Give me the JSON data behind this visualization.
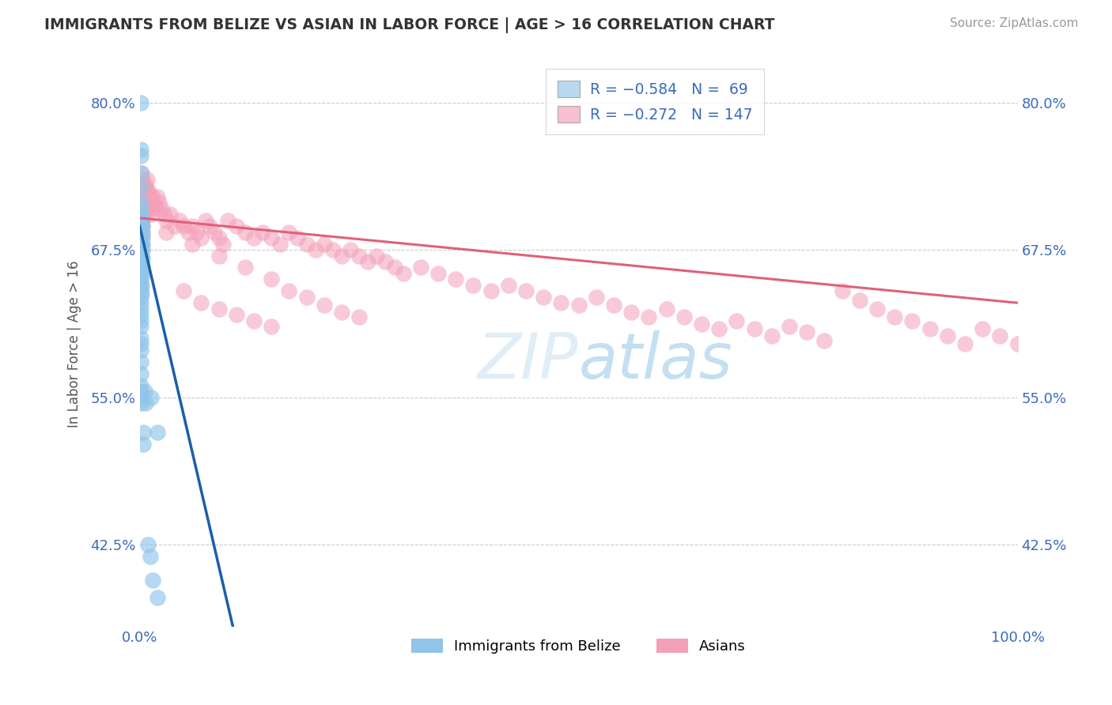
{
  "title": "IMMIGRANTS FROM BELIZE VS ASIAN IN LABOR FORCE | AGE > 16 CORRELATION CHART",
  "source_text": "Source: ZipAtlas.com",
  "ylabel": "In Labor Force | Age > 16",
  "xlim": [
    0.0,
    1.0
  ],
  "ylim": [
    0.355,
    0.835
  ],
  "yticks": [
    0.425,
    0.55,
    0.675,
    0.8
  ],
  "ytick_labels": [
    "42.5%",
    "55.0%",
    "67.5%",
    "80.0%"
  ],
  "xticks": [
    0.0,
    1.0
  ],
  "xtick_labels": [
    "0.0%",
    "100.0%"
  ],
  "belize_color": "#90c4e8",
  "asian_color": "#f4a0b8",
  "belize_trend_color": "#1a5fa8",
  "asian_trend_color": "#e0607a",
  "legend_belize_color": "#b8d8f0",
  "legend_asian_color": "#f8c0d0",
  "watermark_color": "#c8dff0",
  "belize_trend_slope": -3.2,
  "belize_trend_intercept": 0.695,
  "asian_trend_slope": -0.072,
  "asian_trend_intercept": 0.702,
  "belize_points": [
    [
      0.001,
      0.8
    ],
    [
      0.001,
      0.76
    ],
    [
      0.001,
      0.755
    ],
    [
      0.001,
      0.74
    ],
    [
      0.001,
      0.728
    ],
    [
      0.001,
      0.715
    ],
    [
      0.001,
      0.71
    ],
    [
      0.001,
      0.705
    ],
    [
      0.001,
      0.7
    ],
    [
      0.001,
      0.698
    ],
    [
      0.001,
      0.695
    ],
    [
      0.001,
      0.692
    ],
    [
      0.001,
      0.69
    ],
    [
      0.001,
      0.688
    ],
    [
      0.001,
      0.685
    ],
    [
      0.001,
      0.68
    ],
    [
      0.001,
      0.678
    ],
    [
      0.001,
      0.675
    ],
    [
      0.001,
      0.672
    ],
    [
      0.001,
      0.67
    ],
    [
      0.001,
      0.665
    ],
    [
      0.001,
      0.66
    ],
    [
      0.001,
      0.655
    ],
    [
      0.001,
      0.65
    ],
    [
      0.001,
      0.645
    ],
    [
      0.001,
      0.64
    ],
    [
      0.001,
      0.635
    ],
    [
      0.001,
      0.63
    ],
    [
      0.001,
      0.625
    ],
    [
      0.001,
      0.62
    ],
    [
      0.001,
      0.615
    ],
    [
      0.001,
      0.61
    ],
    [
      0.001,
      0.6
    ],
    [
      0.001,
      0.595
    ],
    [
      0.001,
      0.59
    ],
    [
      0.001,
      0.58
    ],
    [
      0.001,
      0.57
    ],
    [
      0.001,
      0.56
    ],
    [
      0.001,
      0.555
    ],
    [
      0.001,
      0.55
    ],
    [
      0.001,
      0.545
    ],
    [
      0.002,
      0.7
    ],
    [
      0.002,
      0.695
    ],
    [
      0.002,
      0.69
    ],
    [
      0.002,
      0.685
    ],
    [
      0.002,
      0.68
    ],
    [
      0.002,
      0.675
    ],
    [
      0.002,
      0.67
    ],
    [
      0.002,
      0.665
    ],
    [
      0.002,
      0.658
    ],
    [
      0.002,
      0.652
    ],
    [
      0.002,
      0.645
    ],
    [
      0.002,
      0.638
    ],
    [
      0.003,
      0.695
    ],
    [
      0.003,
      0.688
    ],
    [
      0.003,
      0.68
    ],
    [
      0.003,
      0.675
    ],
    [
      0.003,
      0.668
    ],
    [
      0.003,
      0.66
    ],
    [
      0.004,
      0.52
    ],
    [
      0.004,
      0.51
    ],
    [
      0.006,
      0.555
    ],
    [
      0.007,
      0.545
    ],
    [
      0.009,
      0.425
    ],
    [
      0.012,
      0.415
    ],
    [
      0.015,
      0.395
    ],
    [
      0.02,
      0.38
    ],
    [
      0.013,
      0.55
    ],
    [
      0.02,
      0.52
    ]
  ],
  "asian_points": [
    [
      0.001,
      0.73
    ],
    [
      0.001,
      0.72
    ],
    [
      0.001,
      0.715
    ],
    [
      0.001,
      0.71
    ],
    [
      0.001,
      0.705
    ],
    [
      0.001,
      0.7
    ],
    [
      0.001,
      0.695
    ],
    [
      0.001,
      0.69
    ],
    [
      0.001,
      0.685
    ],
    [
      0.001,
      0.68
    ],
    [
      0.002,
      0.74
    ],
    [
      0.002,
      0.73
    ],
    [
      0.002,
      0.72
    ],
    [
      0.002,
      0.715
    ],
    [
      0.002,
      0.71
    ],
    [
      0.002,
      0.705
    ],
    [
      0.002,
      0.7
    ],
    [
      0.002,
      0.695
    ],
    [
      0.002,
      0.69
    ],
    [
      0.002,
      0.685
    ],
    [
      0.002,
      0.68
    ],
    [
      0.003,
      0.735
    ],
    [
      0.003,
      0.728
    ],
    [
      0.003,
      0.72
    ],
    [
      0.003,
      0.715
    ],
    [
      0.003,
      0.71
    ],
    [
      0.003,
      0.7
    ],
    [
      0.003,
      0.695
    ],
    [
      0.003,
      0.69
    ],
    [
      0.003,
      0.685
    ],
    [
      0.004,
      0.73
    ],
    [
      0.004,
      0.722
    ],
    [
      0.004,
      0.715
    ],
    [
      0.004,
      0.708
    ],
    [
      0.005,
      0.725
    ],
    [
      0.005,
      0.718
    ],
    [
      0.005,
      0.71
    ],
    [
      0.005,
      0.703
    ],
    [
      0.006,
      0.728
    ],
    [
      0.006,
      0.72
    ],
    [
      0.006,
      0.712
    ],
    [
      0.007,
      0.73
    ],
    [
      0.007,
      0.722
    ],
    [
      0.007,
      0.714
    ],
    [
      0.008,
      0.735
    ],
    [
      0.008,
      0.725
    ],
    [
      0.009,
      0.72
    ],
    [
      0.009,
      0.71
    ],
    [
      0.01,
      0.725
    ],
    [
      0.01,
      0.715
    ],
    [
      0.011,
      0.72
    ],
    [
      0.012,
      0.715
    ],
    [
      0.013,
      0.71
    ],
    [
      0.014,
      0.705
    ],
    [
      0.015,
      0.72
    ],
    [
      0.016,
      0.715
    ],
    [
      0.018,
      0.71
    ],
    [
      0.02,
      0.72
    ],
    [
      0.022,
      0.715
    ],
    [
      0.025,
      0.71
    ],
    [
      0.028,
      0.705
    ],
    [
      0.03,
      0.7
    ],
    [
      0.035,
      0.705
    ],
    [
      0.04,
      0.695
    ],
    [
      0.045,
      0.7
    ],
    [
      0.05,
      0.695
    ],
    [
      0.055,
      0.69
    ],
    [
      0.06,
      0.695
    ],
    [
      0.065,
      0.69
    ],
    [
      0.07,
      0.685
    ],
    [
      0.075,
      0.7
    ],
    [
      0.08,
      0.695
    ],
    [
      0.085,
      0.69
    ],
    [
      0.09,
      0.685
    ],
    [
      0.095,
      0.68
    ],
    [
      0.1,
      0.7
    ],
    [
      0.11,
      0.695
    ],
    [
      0.12,
      0.69
    ],
    [
      0.13,
      0.685
    ],
    [
      0.14,
      0.69
    ],
    [
      0.15,
      0.685
    ],
    [
      0.16,
      0.68
    ],
    [
      0.17,
      0.69
    ],
    [
      0.18,
      0.685
    ],
    [
      0.19,
      0.68
    ],
    [
      0.2,
      0.675
    ],
    [
      0.21,
      0.68
    ],
    [
      0.22,
      0.675
    ],
    [
      0.23,
      0.67
    ],
    [
      0.24,
      0.675
    ],
    [
      0.25,
      0.67
    ],
    [
      0.26,
      0.665
    ],
    [
      0.27,
      0.67
    ],
    [
      0.28,
      0.665
    ],
    [
      0.29,
      0.66
    ],
    [
      0.3,
      0.655
    ],
    [
      0.32,
      0.66
    ],
    [
      0.34,
      0.655
    ],
    [
      0.36,
      0.65
    ],
    [
      0.38,
      0.645
    ],
    [
      0.4,
      0.64
    ],
    [
      0.42,
      0.645
    ],
    [
      0.44,
      0.64
    ],
    [
      0.46,
      0.635
    ],
    [
      0.48,
      0.63
    ],
    [
      0.5,
      0.628
    ],
    [
      0.52,
      0.635
    ],
    [
      0.54,
      0.628
    ],
    [
      0.56,
      0.622
    ],
    [
      0.58,
      0.618
    ],
    [
      0.6,
      0.625
    ],
    [
      0.62,
      0.618
    ],
    [
      0.64,
      0.612
    ],
    [
      0.66,
      0.608
    ],
    [
      0.68,
      0.615
    ],
    [
      0.7,
      0.608
    ],
    [
      0.72,
      0.602
    ],
    [
      0.74,
      0.61
    ],
    [
      0.76,
      0.605
    ],
    [
      0.78,
      0.598
    ],
    [
      0.8,
      0.64
    ],
    [
      0.82,
      0.632
    ],
    [
      0.84,
      0.625
    ],
    [
      0.86,
      0.618
    ],
    [
      0.88,
      0.615
    ],
    [
      0.9,
      0.608
    ],
    [
      0.92,
      0.602
    ],
    [
      0.94,
      0.595
    ],
    [
      0.96,
      0.608
    ],
    [
      0.98,
      0.602
    ],
    [
      1.0,
      0.595
    ],
    [
      0.05,
      0.64
    ],
    [
      0.07,
      0.63
    ],
    [
      0.09,
      0.625
    ],
    [
      0.11,
      0.62
    ],
    [
      0.13,
      0.615
    ],
    [
      0.15,
      0.61
    ],
    [
      0.17,
      0.64
    ],
    [
      0.19,
      0.635
    ],
    [
      0.21,
      0.628
    ],
    [
      0.23,
      0.622
    ],
    [
      0.25,
      0.618
    ],
    [
      0.03,
      0.69
    ],
    [
      0.06,
      0.68
    ],
    [
      0.09,
      0.67
    ],
    [
      0.12,
      0.66
    ],
    [
      0.15,
      0.65
    ]
  ]
}
